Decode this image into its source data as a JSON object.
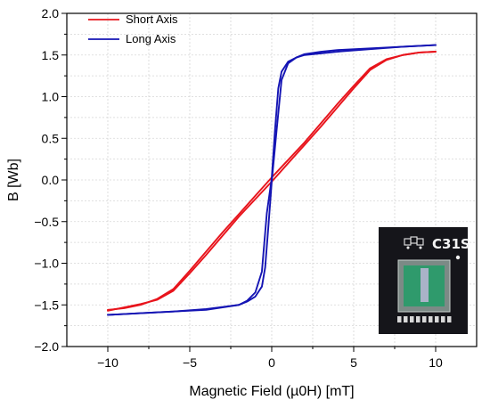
{
  "chart_data": {
    "type": "line",
    "xlabel": "Magnetic Field (µ0H) [mT]",
    "ylabel": "B [Wb]",
    "xlim": [
      -12.5,
      12.5
    ],
    "ylim": [
      -2.0,
      2.0
    ],
    "x_ticks": [
      -10,
      -5,
      0,
      5,
      10
    ],
    "y_ticks": [
      2.0,
      1.5,
      1.0,
      0.5,
      0.0,
      -0.5,
      -1.0,
      -1.5,
      -2.0
    ],
    "x_tick_labels": [
      "−10",
      "−5",
      "0",
      "5",
      "10"
    ],
    "y_tick_labels": [
      "2.0",
      "1.5",
      "1.0",
      "0.5",
      "0.0",
      "−0.5",
      "−1.0",
      "−1.5",
      "−2.0"
    ],
    "grid": true,
    "legend_position": "top-left",
    "series": [
      {
        "name": "Short Axis",
        "color": "#e8141c",
        "branches": [
          {
            "x": [
              -10,
              -9,
              -8,
              -7,
              -6,
              -5,
              -4,
              -3,
              -2,
              -1,
              0,
              1,
              2,
              3,
              4,
              5,
              6,
              7,
              8,
              9,
              10
            ],
            "y": [
              -1.57,
              -1.53,
              -1.49,
              -1.44,
              -1.33,
              -1.12,
              -0.9,
              -0.67,
              -0.44,
              -0.23,
              -0.02,
              0.2,
              0.42,
              0.64,
              0.87,
              1.1,
              1.32,
              1.44,
              1.5,
              1.53,
              1.54
            ]
          },
          {
            "x": [
              10,
              9,
              8,
              7,
              6,
              5,
              4,
              3,
              2,
              1,
              0,
              -1,
              -2,
              -3,
              -4,
              -5,
              -6,
              -7,
              -8,
              -9,
              -10
            ],
            "y": [
              1.54,
              1.53,
              1.5,
              1.45,
              1.34,
              1.13,
              0.91,
              0.68,
              0.45,
              0.24,
              0.03,
              -0.19,
              -0.41,
              -0.63,
              -0.86,
              -1.09,
              -1.31,
              -1.43,
              -1.5,
              -1.54,
              -1.56
            ]
          }
        ]
      },
      {
        "name": "Long Axis",
        "color": "#1414b4",
        "branches": [
          {
            "x": [
              -10,
              -8,
              -6,
              -4,
              -2,
              -1.5,
              -1,
              -0.6,
              -0.3,
              0,
              0.2,
              0.4,
              0.6,
              1,
              1.5,
              2,
              3,
              4,
              6,
              8,
              10
            ],
            "y": [
              -1.62,
              -1.6,
              -1.58,
              -1.56,
              -1.5,
              -1.45,
              -1.35,
              -1.1,
              -0.4,
              0.02,
              0.6,
              1.1,
              1.3,
              1.42,
              1.47,
              1.5,
              1.52,
              1.54,
              1.57,
              1.6,
              1.62
            ]
          },
          {
            "x": [
              10,
              8,
              6,
              4,
              3,
              2,
              1.5,
              1,
              0.6,
              0.3,
              0,
              -0.2,
              -0.4,
              -0.6,
              -1,
              -1.5,
              -2,
              -4,
              -6,
              -8,
              -10
            ],
            "y": [
              1.62,
              1.6,
              1.58,
              1.56,
              1.54,
              1.51,
              1.47,
              1.4,
              1.2,
              0.6,
              -0.02,
              -0.55,
              -1.05,
              -1.28,
              -1.4,
              -1.46,
              -1.5,
              -1.55,
              -1.58,
              -1.6,
              -1.62
            ]
          }
        ]
      }
    ]
  },
  "inset": {
    "chip_label": "C31S",
    "colors": {
      "board": "#15151a",
      "frame": "#7c8a86",
      "window": "#2f9a6c",
      "strip": "#a9b3c8"
    }
  }
}
